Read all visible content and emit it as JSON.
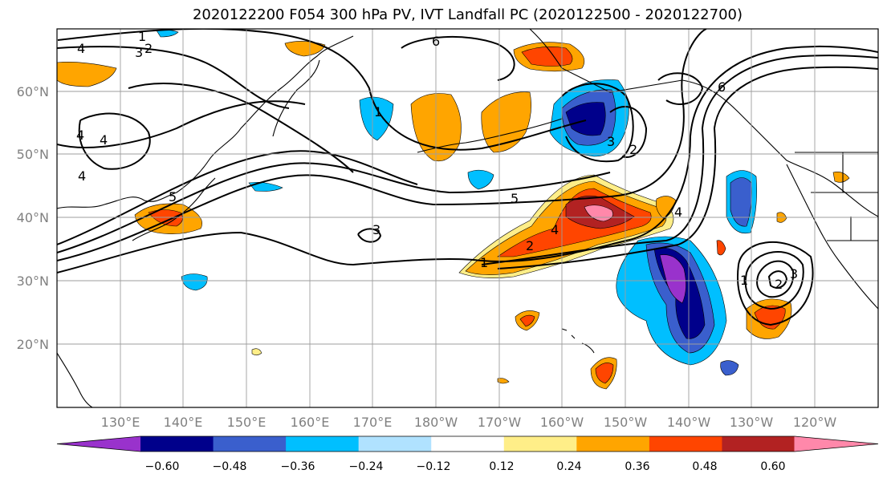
{
  "title": "2020122200 F054 300 hPa PV, IVT Landfall PC (2020122500 - 2020122700)",
  "lat_labels": [
    "60°N",
    "50°N",
    "40°N",
    "30°N",
    "20°N"
  ],
  "lon_labels": [
    "130°E",
    "140°E",
    "150°E",
    "160°E",
    "170°E",
    "180°W",
    "170°W",
    "160°W",
    "150°W",
    "140°W",
    "130°W",
    "120°W"
  ],
  "contour_labels": [
    "1",
    "3",
    "2",
    "4",
    "6",
    "4",
    "4",
    "5",
    "5",
    "4",
    "3",
    "2",
    "3",
    "4",
    "2",
    "1",
    "3",
    "6",
    "1",
    "2",
    "1",
    "4"
  ],
  "colorbar": {
    "ticks": [
      "−0.60",
      "−0.48",
      "−0.36",
      "−0.24",
      "−0.12",
      "0.12",
      "0.24",
      "0.36",
      "0.48",
      "0.60"
    ],
    "colors": [
      "#9932cc",
      "#00008b",
      "#3a5fcd",
      "#00bfff",
      "#b0e2ff",
      "#ffffff",
      "#ffee88",
      "#ffa500",
      "#ff4500",
      "#b22222",
      "#ff88aa"
    ]
  },
  "colors": {
    "grid": "#9e9e9e",
    "label": "#808080",
    "contour": "#000000"
  }
}
